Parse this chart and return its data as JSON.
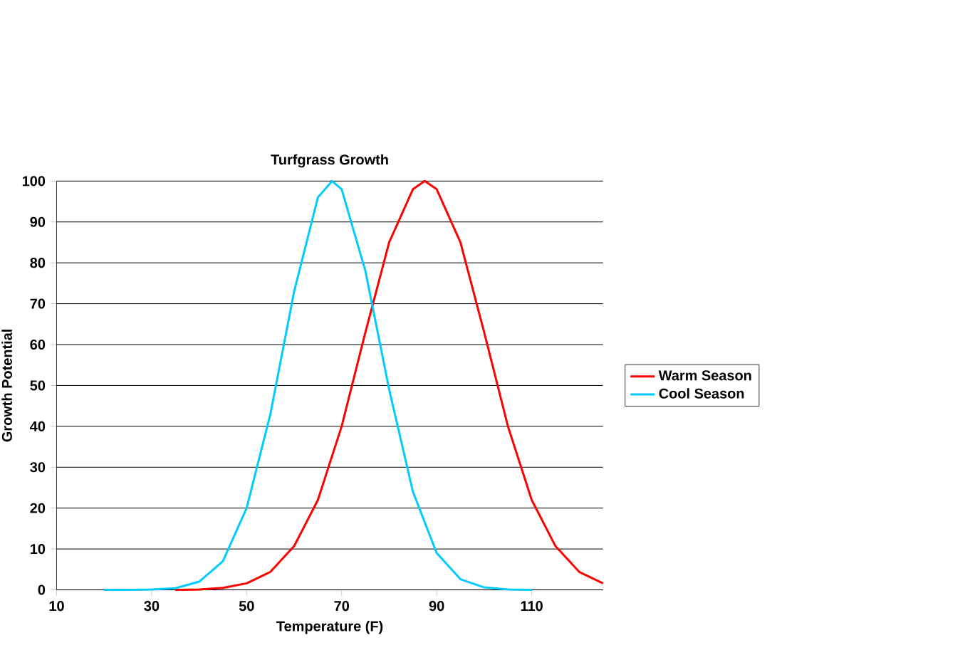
{
  "chart_data": {
    "type": "line",
    "title": "Turfgrass Growth",
    "xlabel": "Temperature (F)",
    "ylabel": "Growth Potential",
    "xlim": [
      10,
      125
    ],
    "xticks": [
      10,
      30,
      50,
      70,
      90,
      110
    ],
    "ylim": [
      0,
      100
    ],
    "yticks": [
      0,
      10,
      20,
      30,
      40,
      50,
      60,
      70,
      80,
      90,
      100
    ],
    "grid": "y",
    "legend": "right",
    "marker": "none",
    "line_style": "solid",
    "series": [
      {
        "name": "Warm Season",
        "color": "#ff0000",
        "x": [
          35,
          40,
          45,
          50,
          55,
          60,
          65,
          70,
          75,
          80,
          85,
          87.5,
          90,
          95,
          100,
          105,
          110,
          115,
          120,
          125
        ],
        "values": [
          0,
          0.1,
          0.5,
          1.6,
          4.4,
          10.7,
          22,
          40,
          63,
          85,
          98,
          100,
          98,
          85,
          63,
          40,
          22,
          10.7,
          4.4,
          1.6
        ]
      },
      {
        "name": "Cool Season",
        "color": "#00ccff",
        "x": [
          20,
          25,
          30,
          35,
          40,
          45,
          50,
          55,
          60,
          65,
          68,
          70,
          75,
          80,
          85,
          90,
          95,
          100,
          105,
          110
        ],
        "values": [
          0,
          0,
          0.1,
          0.4,
          2,
          7,
          20,
          43,
          73,
          96,
          100,
          98,
          78,
          49,
          24,
          9,
          2.6,
          0.6,
          0.1,
          0
        ]
      }
    ]
  }
}
